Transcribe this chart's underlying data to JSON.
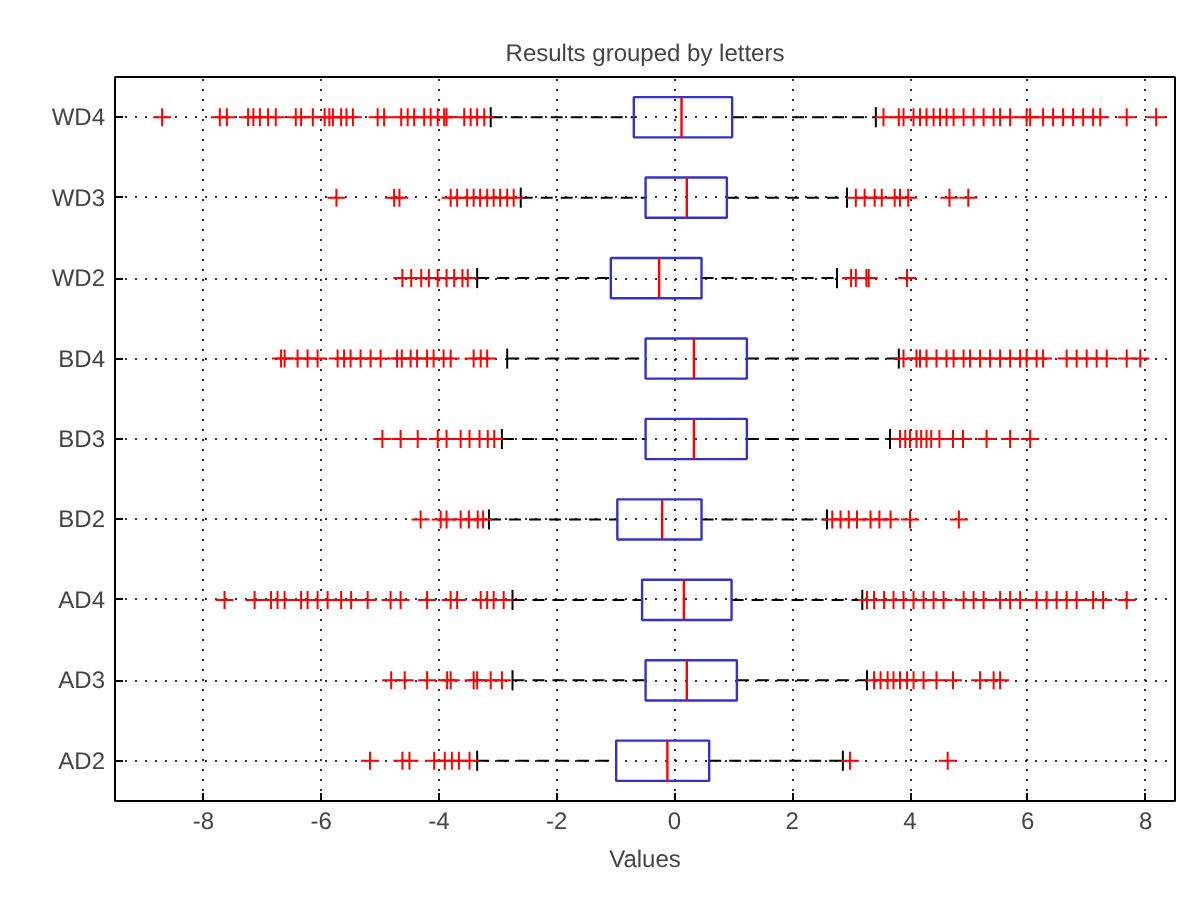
{
  "chart_data": {
    "type": "box",
    "orientation": "horizontal",
    "title": "Results grouped by letters",
    "xlabel": "Values",
    "categories": [
      "WD4",
      "WD3",
      "WD2",
      "BD4",
      "BD3",
      "BD2",
      "AD4",
      "AD3",
      "AD2"
    ],
    "xlim": [
      -9.5,
      8.5
    ],
    "xticks": [
      -8,
      -6,
      -4,
      -2,
      0,
      2,
      4,
      6,
      8
    ],
    "grid": true,
    "line_style": "dashed",
    "series": [
      {
        "color": "#3333cc",
        "boxes": [
          {
            "low": -3.12,
            "q1": -0.69,
            "median": 0.12,
            "q3": 0.98,
            "high": 3.42,
            "outliers": [
              -8.7,
              -7.72,
              -7.6,
              -7.24,
              -7.15,
              -7.04,
              -6.9,
              -6.77,
              -6.43,
              -6.34,
              -6.14,
              -5.94,
              -5.86,
              -5.8,
              -5.66,
              -5.57,
              -5.46,
              -5.04,
              -4.93,
              -4.64,
              -4.53,
              -4.42,
              -4.25,
              -4.14,
              -4.02,
              -3.91,
              -3.87,
              -3.57,
              -3.46,
              -3.35,
              -3.23,
              3.55,
              3.81,
              3.89,
              4.06,
              4.17,
              4.28,
              4.4,
              4.51,
              4.62,
              4.74,
              4.91,
              5.08,
              5.25,
              5.42,
              5.53,
              5.7,
              5.98,
              6.04,
              6.26,
              6.43,
              6.6,
              6.77,
              6.94,
              7.11,
              7.23,
              7.68,
              8.18
            ]
          },
          {
            "low": -2.61,
            "q1": -0.49,
            "median": 0.21,
            "q3": 0.89,
            "high": 2.93,
            "outliers": [
              -5.74,
              -4.76,
              -4.67,
              -3.8,
              -3.69,
              -3.52,
              -3.41,
              -3.3,
              -3.18,
              -3.07,
              -2.96,
              -2.84,
              -2.73,
              3.08,
              3.23,
              3.4,
              3.52,
              3.74,
              3.83,
              3.97,
              4.67,
              4.99
            ]
          },
          {
            "low": -3.35,
            "q1": -1.08,
            "median": -0.26,
            "q3": 0.46,
            "high": 2.76,
            "outliers": [
              -4.62,
              -4.47,
              -4.3,
              -4.17,
              -4.02,
              -3.87,
              -3.74,
              -3.6,
              -3.51,
              3.0,
              3.08,
              3.26,
              3.3,
              3.95
            ]
          },
          {
            "low": -2.84,
            "q1": -0.49,
            "median": 0.33,
            "q3": 1.23,
            "high": 3.81,
            "outliers": [
              -6.68,
              -6.62,
              -6.4,
              -6.23,
              -6.06,
              -5.72,
              -5.61,
              -5.5,
              -5.33,
              -5.16,
              -4.99,
              -4.71,
              -4.63,
              -4.48,
              -4.37,
              -4.2,
              -4.09,
              -3.92,
              -3.8,
              -3.41,
              -3.29,
              -3.18,
              3.89,
              4.11,
              4.17,
              4.28,
              4.45,
              4.62,
              4.74,
              4.91,
              5.02,
              5.19,
              5.36,
              5.53,
              5.7,
              5.87,
              5.98,
              6.15,
              6.26,
              6.66,
              6.83,
              7.0,
              7.17,
              7.34,
              7.68,
              7.91
            ]
          },
          {
            "low": -2.93,
            "q1": -0.49,
            "median": 0.33,
            "q3": 1.23,
            "high": 3.66,
            "outliers": [
              -4.96,
              -4.65,
              -4.36,
              -4.02,
              -3.87,
              -3.63,
              -3.48,
              -3.31,
              -3.17,
              -3.06,
              3.83,
              3.92,
              4.0,
              4.11,
              4.19,
              4.28,
              4.36,
              4.5,
              4.73,
              4.9,
              5.3,
              5.7,
              6.04
            ]
          },
          {
            "low": -3.15,
            "q1": -0.97,
            "median": -0.21,
            "q3": 0.46,
            "high": 2.59,
            "outliers": [
              -4.31,
              -3.97,
              -3.87,
              -3.63,
              -3.49,
              -3.34,
              -3.25,
              2.68,
              2.82,
              2.96,
              3.1,
              3.33,
              3.48,
              3.67,
              4.0,
              4.83
            ]
          },
          {
            "low": -2.75,
            "q1": -0.55,
            "median": 0.16,
            "q3": 0.97,
            "high": 3.19,
            "outliers": [
              -7.64,
              -7.13,
              -6.85,
              -6.74,
              -6.62,
              -6.34,
              -6.23,
              -6.06,
              -5.89,
              -5.66,
              -5.49,
              -5.21,
              -4.82,
              -4.65,
              -4.2,
              -3.8,
              -3.69,
              -3.29,
              -3.18,
              -3.07,
              -2.9,
              3.27,
              3.39,
              3.56,
              3.72,
              3.89,
              4.06,
              4.23,
              4.4,
              4.57,
              4.91,
              5.08,
              5.25,
              5.53,
              5.7,
              5.87,
              6.15,
              6.32,
              6.49,
              6.66,
              6.83,
              7.11,
              7.28,
              7.68
            ]
          },
          {
            "low": -2.75,
            "q1": -0.49,
            "median": 0.21,
            "q3": 1.06,
            "high": 3.27,
            "outliers": [
              -4.81,
              -4.58,
              -4.2,
              -3.86,
              -3.8,
              -3.41,
              -3.35,
              -3.12,
              -2.93,
              3.39,
              3.5,
              3.62,
              3.72,
              3.83,
              3.95,
              4.06,
              4.23,
              4.45,
              4.73,
              5.19,
              5.42,
              5.53
            ]
          },
          {
            "low": -3.35,
            "q1": -0.99,
            "median": -0.12,
            "q3": 0.59,
            "high": 2.86,
            "outliers": [
              -5.17,
              -4.62,
              -4.5,
              -4.08,
              -3.9,
              -3.78,
              -3.66,
              -3.48,
              2.98,
              4.64
            ]
          }
        ]
      }
    ]
  }
}
